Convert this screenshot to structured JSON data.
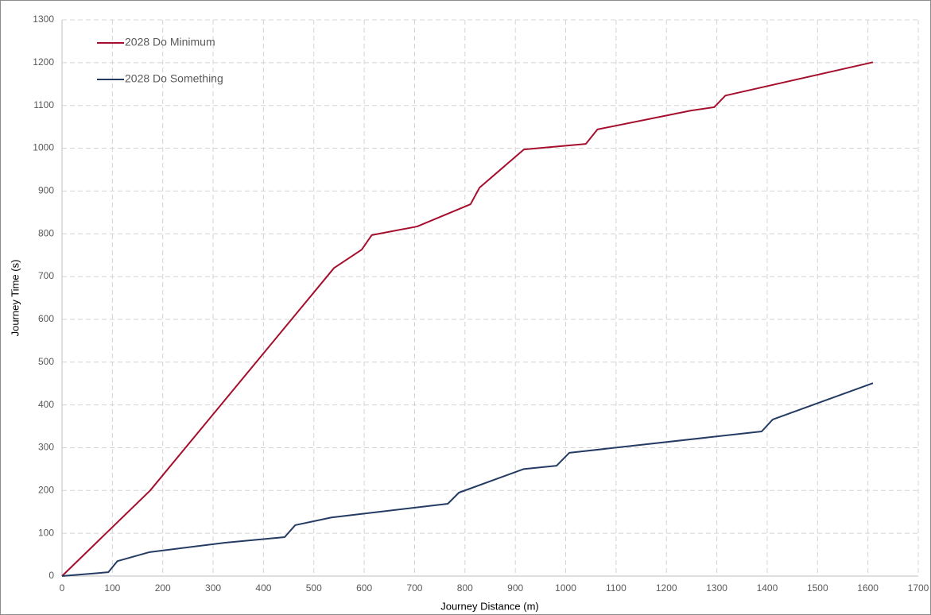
{
  "chart_data": {
    "type": "line",
    "xlabel": "Journey Distance (m)",
    "ylabel": "Journey Time (s)",
    "series": [
      {
        "name": "2028 Do Minimum",
        "color": "#a50f2d",
        "x": [
          0,
          175,
          540,
          595,
          615,
          705,
          811,
          829,
          917,
          1040,
          1063,
          1249,
          1295,
          1317,
          1610
        ],
        "values": [
          0,
          200,
          720,
          763,
          797,
          817,
          869,
          908,
          997,
          1010,
          1044,
          1088,
          1096,
          1123,
          1201
        ]
      },
      {
        "name": "2028 Do Something",
        "color": "#243b63",
        "x": [
          0,
          92,
          110,
          174,
          324,
          442,
          463,
          535,
          766,
          788,
          916,
          982,
          1007,
          1389,
          1411,
          1610
        ],
        "values": [
          0,
          9,
          35,
          56,
          78,
          91,
          119,
          137,
          169,
          195,
          250,
          258,
          288,
          338,
          366,
          451
        ]
      }
    ],
    "xlim": [
      0,
      1700
    ],
    "xticks": [
      0,
      100,
      200,
      300,
      400,
      500,
      600,
      700,
      800,
      900,
      1000,
      1100,
      1200,
      1300,
      1400,
      1500,
      1600,
      1700
    ],
    "ylim": [
      0,
      1300
    ],
    "yticks": [
      0,
      100,
      200,
      300,
      400,
      500,
      600,
      700,
      800,
      900,
      1000,
      1100,
      1200,
      1300
    ],
    "grid": true,
    "legend": "upper left"
  }
}
